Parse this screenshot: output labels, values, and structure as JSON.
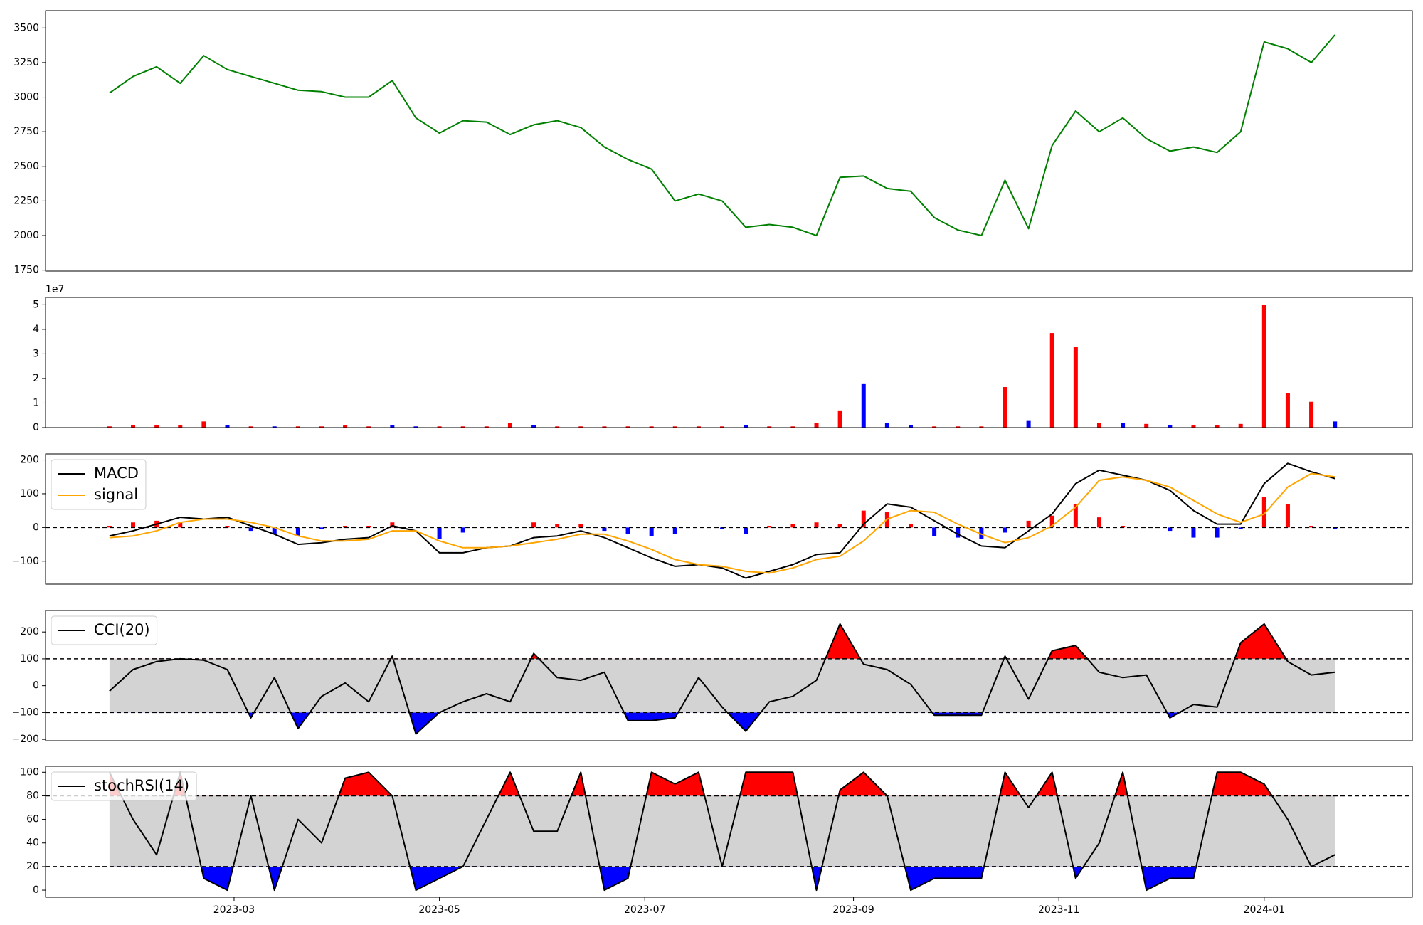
{
  "chart_data": [
    {
      "type": "line",
      "x": [
        "2023-01-23",
        "2023-01-30",
        "2023-02-06",
        "2023-02-13",
        "2023-02-20",
        "2023-02-27",
        "2023-03-06",
        "2023-03-13",
        "2023-03-20",
        "2023-03-27",
        "2023-04-03",
        "2023-04-10",
        "2023-04-17",
        "2023-04-24",
        "2023-05-01",
        "2023-05-08",
        "2023-05-15",
        "2023-05-22",
        "2023-05-29",
        "2023-06-05",
        "2023-06-12",
        "2023-06-19",
        "2023-06-26",
        "2023-07-03",
        "2023-07-10",
        "2023-07-17",
        "2023-07-24",
        "2023-07-31",
        "2023-08-07",
        "2023-08-14",
        "2023-08-21",
        "2023-08-28",
        "2023-09-04",
        "2023-09-11",
        "2023-09-18",
        "2023-09-25",
        "2023-10-02",
        "2023-10-09",
        "2023-10-16",
        "2023-10-23",
        "2023-10-30",
        "2023-11-06",
        "2023-11-13",
        "2023-11-20",
        "2023-11-27",
        "2023-12-04",
        "2023-12-11",
        "2023-12-18",
        "2023-12-25",
        "2024-01-01",
        "2024-01-08",
        "2024-01-15",
        "2024-01-22"
      ],
      "xlim": [
        "2023-01-04",
        "2024-02-14"
      ],
      "series": [
        {
          "color": "#008000",
          "values": [
            3030,
            3150,
            3220,
            3100,
            3300,
            3200,
            3150,
            3100,
            3050,
            3040,
            3000,
            3000,
            3120,
            2850,
            2740,
            2830,
            2820,
            2730,
            2800,
            2830,
            2780,
            2640,
            2550,
            2480,
            2250,
            2300,
            2250,
            2060,
            2080,
            2060,
            2000,
            2420,
            2430,
            2340,
            2320,
            2130,
            2040,
            2000,
            2400,
            2050,
            2650,
            2900,
            2750,
            2850,
            2700,
            2610,
            2640,
            2600,
            2750,
            3400,
            3350,
            3250,
            3450
          ]
        }
      ],
      "ylim": [
        1743,
        3625
      ],
      "yticks": [
        1750,
        2000,
        2250,
        2500,
        2750,
        3000,
        3250,
        3500
      ]
    },
    {
      "type": "bar",
      "x": [
        "2023-01-23",
        "2023-01-30",
        "2023-02-06",
        "2023-02-13",
        "2023-02-20",
        "2023-02-27",
        "2023-03-06",
        "2023-03-13",
        "2023-03-20",
        "2023-03-27",
        "2023-04-03",
        "2023-04-10",
        "2023-04-17",
        "2023-04-24",
        "2023-05-01",
        "2023-05-08",
        "2023-05-15",
        "2023-05-22",
        "2023-05-29",
        "2023-06-05",
        "2023-06-12",
        "2023-06-19",
        "2023-06-26",
        "2023-07-03",
        "2023-07-10",
        "2023-07-17",
        "2023-07-24",
        "2023-07-31",
        "2023-08-07",
        "2023-08-14",
        "2023-08-21",
        "2023-08-28",
        "2023-09-04",
        "2023-09-11",
        "2023-09-18",
        "2023-09-25",
        "2023-10-02",
        "2023-10-09",
        "2023-10-16",
        "2023-10-23",
        "2023-10-30",
        "2023-11-06",
        "2023-11-13",
        "2023-11-20",
        "2023-11-27",
        "2023-12-04",
        "2023-12-11",
        "2023-12-18",
        "2023-12-25",
        "2024-01-01",
        "2024-01-08",
        "2024-01-15",
        "2024-01-22"
      ],
      "xlim": [
        "2023-01-04",
        "2024-02-14"
      ],
      "values": [
        0.05,
        0.1,
        0.1,
        0.1,
        0.25,
        0.1,
        0.05,
        0.05,
        0.05,
        0.05,
        0.1,
        0.05,
        0.1,
        0.05,
        0.05,
        0.05,
        0.05,
        0.2,
        0.1,
        0.05,
        0.05,
        0.05,
        0.05,
        0.05,
        0.05,
        0.05,
        0.05,
        0.1,
        0.05,
        0.05,
        0.2,
        0.7,
        1.8,
        0.2,
        0.1,
        0.05,
        0.05,
        0.05,
        1.65,
        0.3,
        3.85,
        3.3,
        0.2,
        0.2,
        0.15,
        0.1,
        0.1,
        0.1,
        0.15,
        5.0,
        1.4,
        1.05,
        0.25
      ],
      "colors": [
        "#ff0000",
        "#ff0000",
        "#ff0000",
        "#ff0000",
        "#ff0000",
        "#0000ff",
        "#ff0000",
        "#0000ff",
        "#ff0000",
        "#ff0000",
        "#ff0000",
        "#ff0000",
        "#0000ff",
        "#0000ff",
        "#ff0000",
        "#ff0000",
        "#ff0000",
        "#ff0000",
        "#0000ff",
        "#ff0000",
        "#ff0000",
        "#ff0000",
        "#ff0000",
        "#ff0000",
        "#ff0000",
        "#ff0000",
        "#ff0000",
        "#0000ff",
        "#ff0000",
        "#ff0000",
        "#ff0000",
        "#ff0000",
        "#0000ff",
        "#0000ff",
        "#0000ff",
        "#ff0000",
        "#ff0000",
        "#ff0000",
        "#ff0000",
        "#0000ff",
        "#ff0000",
        "#ff0000",
        "#ff0000",
        "#0000ff",
        "#ff0000",
        "#0000ff",
        "#ff0000",
        "#ff0000",
        "#ff0000",
        "#ff0000",
        "#ff0000",
        "#ff0000",
        "#0000ff"
      ],
      "offset_label": "1e7",
      "ylim": [
        0,
        5.3
      ],
      "yticks": [
        0,
        1,
        2,
        3,
        4,
        5
      ]
    },
    {
      "type": "macd",
      "x": [
        "2023-01-23",
        "2023-01-30",
        "2023-02-06",
        "2023-02-13",
        "2023-02-20",
        "2023-02-27",
        "2023-03-06",
        "2023-03-13",
        "2023-03-20",
        "2023-03-27",
        "2023-04-03",
        "2023-04-10",
        "2023-04-17",
        "2023-04-24",
        "2023-05-01",
        "2023-05-08",
        "2023-05-15",
        "2023-05-22",
        "2023-05-29",
        "2023-06-05",
        "2023-06-12",
        "2023-06-19",
        "2023-06-26",
        "2023-07-03",
        "2023-07-10",
        "2023-07-17",
        "2023-07-24",
        "2023-07-31",
        "2023-08-07",
        "2023-08-14",
        "2023-08-21",
        "2023-08-28",
        "2023-09-04",
        "2023-09-11",
        "2023-09-18",
        "2023-09-25",
        "2023-10-02",
        "2023-10-09",
        "2023-10-16",
        "2023-10-23",
        "2023-10-30",
        "2023-11-06",
        "2023-11-13",
        "2023-11-20",
        "2023-11-27",
        "2023-12-04",
        "2023-12-11",
        "2023-12-18",
        "2023-12-25",
        "2024-01-01",
        "2024-01-08",
        "2024-01-15",
        "2024-01-22"
      ],
      "xlim": [
        "2023-01-04",
        "2024-02-14"
      ],
      "series": [
        {
          "name": "MACD",
          "color": "#000000",
          "values": [
            -25,
            -10,
            10,
            30,
            25,
            30,
            5,
            -20,
            -50,
            -45,
            -35,
            -30,
            5,
            -10,
            -75,
            -75,
            -60,
            -55,
            -30,
            -25,
            -10,
            -30,
            -60,
            -90,
            -115,
            -110,
            -120,
            -150,
            -130,
            -110,
            -80,
            -75,
            10,
            70,
            60,
            20,
            -20,
            -55,
            -60,
            -10,
            40,
            130,
            170,
            155,
            140,
            110,
            50,
            10,
            10,
            130,
            190,
            165,
            145
          ]
        },
        {
          "name": "signal",
          "color": "#ffa500",
          "values": [
            -30,
            -25,
            -10,
            15,
            25,
            25,
            15,
            0,
            -25,
            -40,
            -40,
            -35,
            -10,
            -10,
            -40,
            -60,
            -60,
            -55,
            -45,
            -35,
            -20,
            -20,
            -40,
            -65,
            -95,
            -110,
            -115,
            -130,
            -135,
            -120,
            -95,
            -85,
            -40,
            25,
            50,
            45,
            10,
            -20,
            -45,
            -30,
            5,
            60,
            140,
            150,
            140,
            120,
            80,
            40,
            15,
            40,
            120,
            160,
            150
          ]
        }
      ],
      "histogram": {
        "up_color": "#ff0000",
        "down_color": "#0000ff",
        "values": [
          5,
          15,
          20,
          15,
          0,
          5,
          -10,
          -20,
          -25,
          -5,
          5,
          5,
          15,
          0,
          -35,
          -15,
          0,
          0,
          15,
          10,
          10,
          -10,
          -20,
          -25,
          -20,
          0,
          -5,
          -20,
          5,
          10,
          15,
          10,
          50,
          45,
          10,
          -25,
          -30,
          -35,
          -15,
          20,
          35,
          70,
          30,
          5,
          0,
          -10,
          -30,
          -30,
          -5,
          90,
          70,
          5,
          -5
        ]
      },
      "zero_line": true,
      "legend": "upper left",
      "ylim": [
        -168,
        218
      ],
      "yticks": [
        {
          "value": -100,
          "label": "−100"
        },
        0,
        100,
        200
      ]
    },
    {
      "type": "oscillator",
      "x": [
        "2023-01-23",
        "2023-01-30",
        "2023-02-06",
        "2023-02-13",
        "2023-02-20",
        "2023-02-27",
        "2023-03-06",
        "2023-03-13",
        "2023-03-20",
        "2023-03-27",
        "2023-04-03",
        "2023-04-10",
        "2023-04-17",
        "2023-04-24",
        "2023-05-01",
        "2023-05-08",
        "2023-05-15",
        "2023-05-22",
        "2023-05-29",
        "2023-06-05",
        "2023-06-12",
        "2023-06-19",
        "2023-06-26",
        "2023-07-03",
        "2023-07-10",
        "2023-07-17",
        "2023-07-24",
        "2023-07-31",
        "2023-08-07",
        "2023-08-14",
        "2023-08-21",
        "2023-08-28",
        "2023-09-04",
        "2023-09-11",
        "2023-09-18",
        "2023-09-25",
        "2023-10-02",
        "2023-10-09",
        "2023-10-16",
        "2023-10-23",
        "2023-10-30",
        "2023-11-06",
        "2023-11-13",
        "2023-11-20",
        "2023-11-27",
        "2023-12-04",
        "2023-12-11",
        "2023-12-18",
        "2023-12-25",
        "2024-01-01",
        "2024-01-08",
        "2024-01-15",
        "2024-01-22"
      ],
      "xlim": [
        "2023-01-04",
        "2024-02-14"
      ],
      "series": [
        {
          "name": "CCI(20)",
          "color": "#000000",
          "values": [
            -20,
            60,
            90,
            100,
            95,
            60,
            -120,
            30,
            -160,
            -40,
            10,
            -60,
            110,
            -180,
            -100,
            -60,
            -30,
            -60,
            120,
            30,
            20,
            50,
            -130,
            -130,
            -120,
            30,
            -80,
            -170,
            -60,
            -40,
            20,
            230,
            80,
            60,
            5,
            -110,
            -110,
            -110,
            110,
            -50,
            130,
            150,
            50,
            30,
            40,
            -120,
            -70,
            -80,
            160,
            230,
            90,
            40,
            50
          ]
        }
      ],
      "bands": [
        -100,
        100
      ],
      "band_color": "#d3d3d3",
      "upper_color": "#ff0000",
      "lower_color": "#0000ff",
      "legend": "upper left",
      "ylim": [
        -205,
        280
      ],
      "yticks": [
        {
          "value": -200,
          "label": "−200"
        },
        {
          "value": -100,
          "label": "−100"
        },
        0,
        100,
        200
      ]
    },
    {
      "type": "oscillator",
      "x": [
        "2023-01-23",
        "2023-01-30",
        "2023-02-06",
        "2023-02-13",
        "2023-02-20",
        "2023-02-27",
        "2023-03-06",
        "2023-03-13",
        "2023-03-20",
        "2023-03-27",
        "2023-04-03",
        "2023-04-10",
        "2023-04-17",
        "2023-04-24",
        "2023-05-01",
        "2023-05-08",
        "2023-05-15",
        "2023-05-22",
        "2023-05-29",
        "2023-06-05",
        "2023-06-12",
        "2023-06-19",
        "2023-06-26",
        "2023-07-03",
        "2023-07-10",
        "2023-07-17",
        "2023-07-24",
        "2023-07-31",
        "2023-08-07",
        "2023-08-14",
        "2023-08-21",
        "2023-08-28",
        "2023-09-04",
        "2023-09-11",
        "2023-09-18",
        "2023-09-25",
        "2023-10-02",
        "2023-10-09",
        "2023-10-16",
        "2023-10-23",
        "2023-10-30",
        "2023-11-06",
        "2023-11-13",
        "2023-11-20",
        "2023-11-27",
        "2023-12-04",
        "2023-12-11",
        "2023-12-18",
        "2023-12-25",
        "2024-01-01",
        "2024-01-08",
        "2024-01-15",
        "2024-01-22"
      ],
      "xlim": [
        "2023-01-04",
        "2024-02-14"
      ],
      "series": [
        {
          "name": "stochRSI(14)",
          "color": "#000000",
          "values": [
            100,
            60,
            30,
            100,
            10,
            0,
            80,
            0,
            60,
            40,
            95,
            100,
            80,
            0,
            10,
            20,
            60,
            100,
            50,
            50,
            100,
            0,
            10,
            100,
            90,
            100,
            20,
            100,
            100,
            100,
            0,
            85,
            100,
            80,
            0,
            10,
            10,
            10,
            100,
            70,
            100,
            10,
            40,
            100,
            0,
            10,
            10,
            100,
            100,
            90,
            60,
            20,
            30
          ]
        }
      ],
      "bands": [
        20,
        80
      ],
      "band_color": "#d3d3d3",
      "upper_color": "#ff0000",
      "lower_color": "#0000ff",
      "legend": "upper left",
      "ylim": [
        -6,
        105
      ],
      "yticks": [
        0,
        20,
        40,
        60,
        80,
        100
      ],
      "xticks": [
        {
          "value": "2023-03-01",
          "label": "2023-03"
        },
        {
          "value": "2023-05-01",
          "label": "2023-05"
        },
        {
          "value": "2023-07-01",
          "label": "2023-07"
        },
        {
          "value": "2023-09-01",
          "label": "2023-09"
        },
        {
          "value": "2023-11-01",
          "label": "2023-11"
        },
        {
          "value": "2024-01-01",
          "label": "2024-01"
        }
      ]
    }
  ]
}
